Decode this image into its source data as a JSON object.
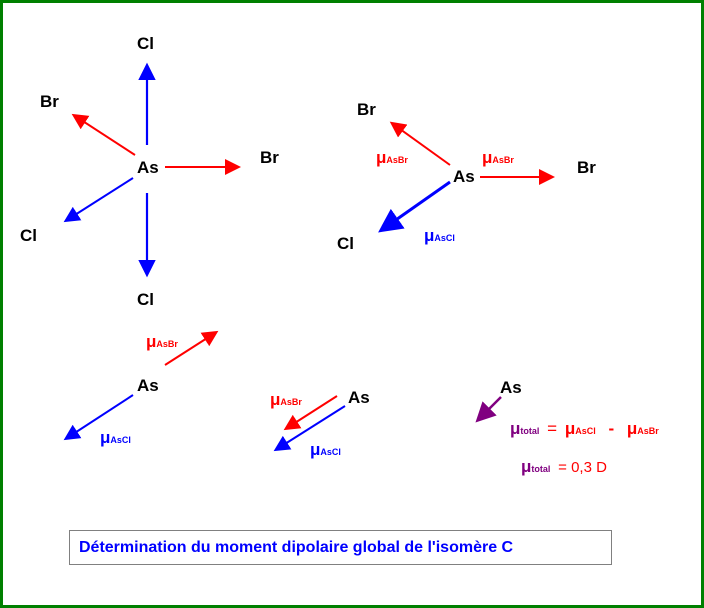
{
  "atoms": {
    "as": "As",
    "cl": "Cl",
    "br": "Br"
  },
  "mu": {
    "symbol": "μ",
    "as_br": "AsBr",
    "as_cl": "AsCl",
    "total": "total"
  },
  "formula": {
    "equals": "=",
    "minus": "-",
    "value": "= 0,3 D"
  },
  "caption": "Détermination du moment dipolaire global de l'isomère C",
  "colors": {
    "border": "#008000",
    "as_br": "#ff0000",
    "as_cl": "#0000ff",
    "total": "#800080",
    "caption": "#0000ff"
  }
}
